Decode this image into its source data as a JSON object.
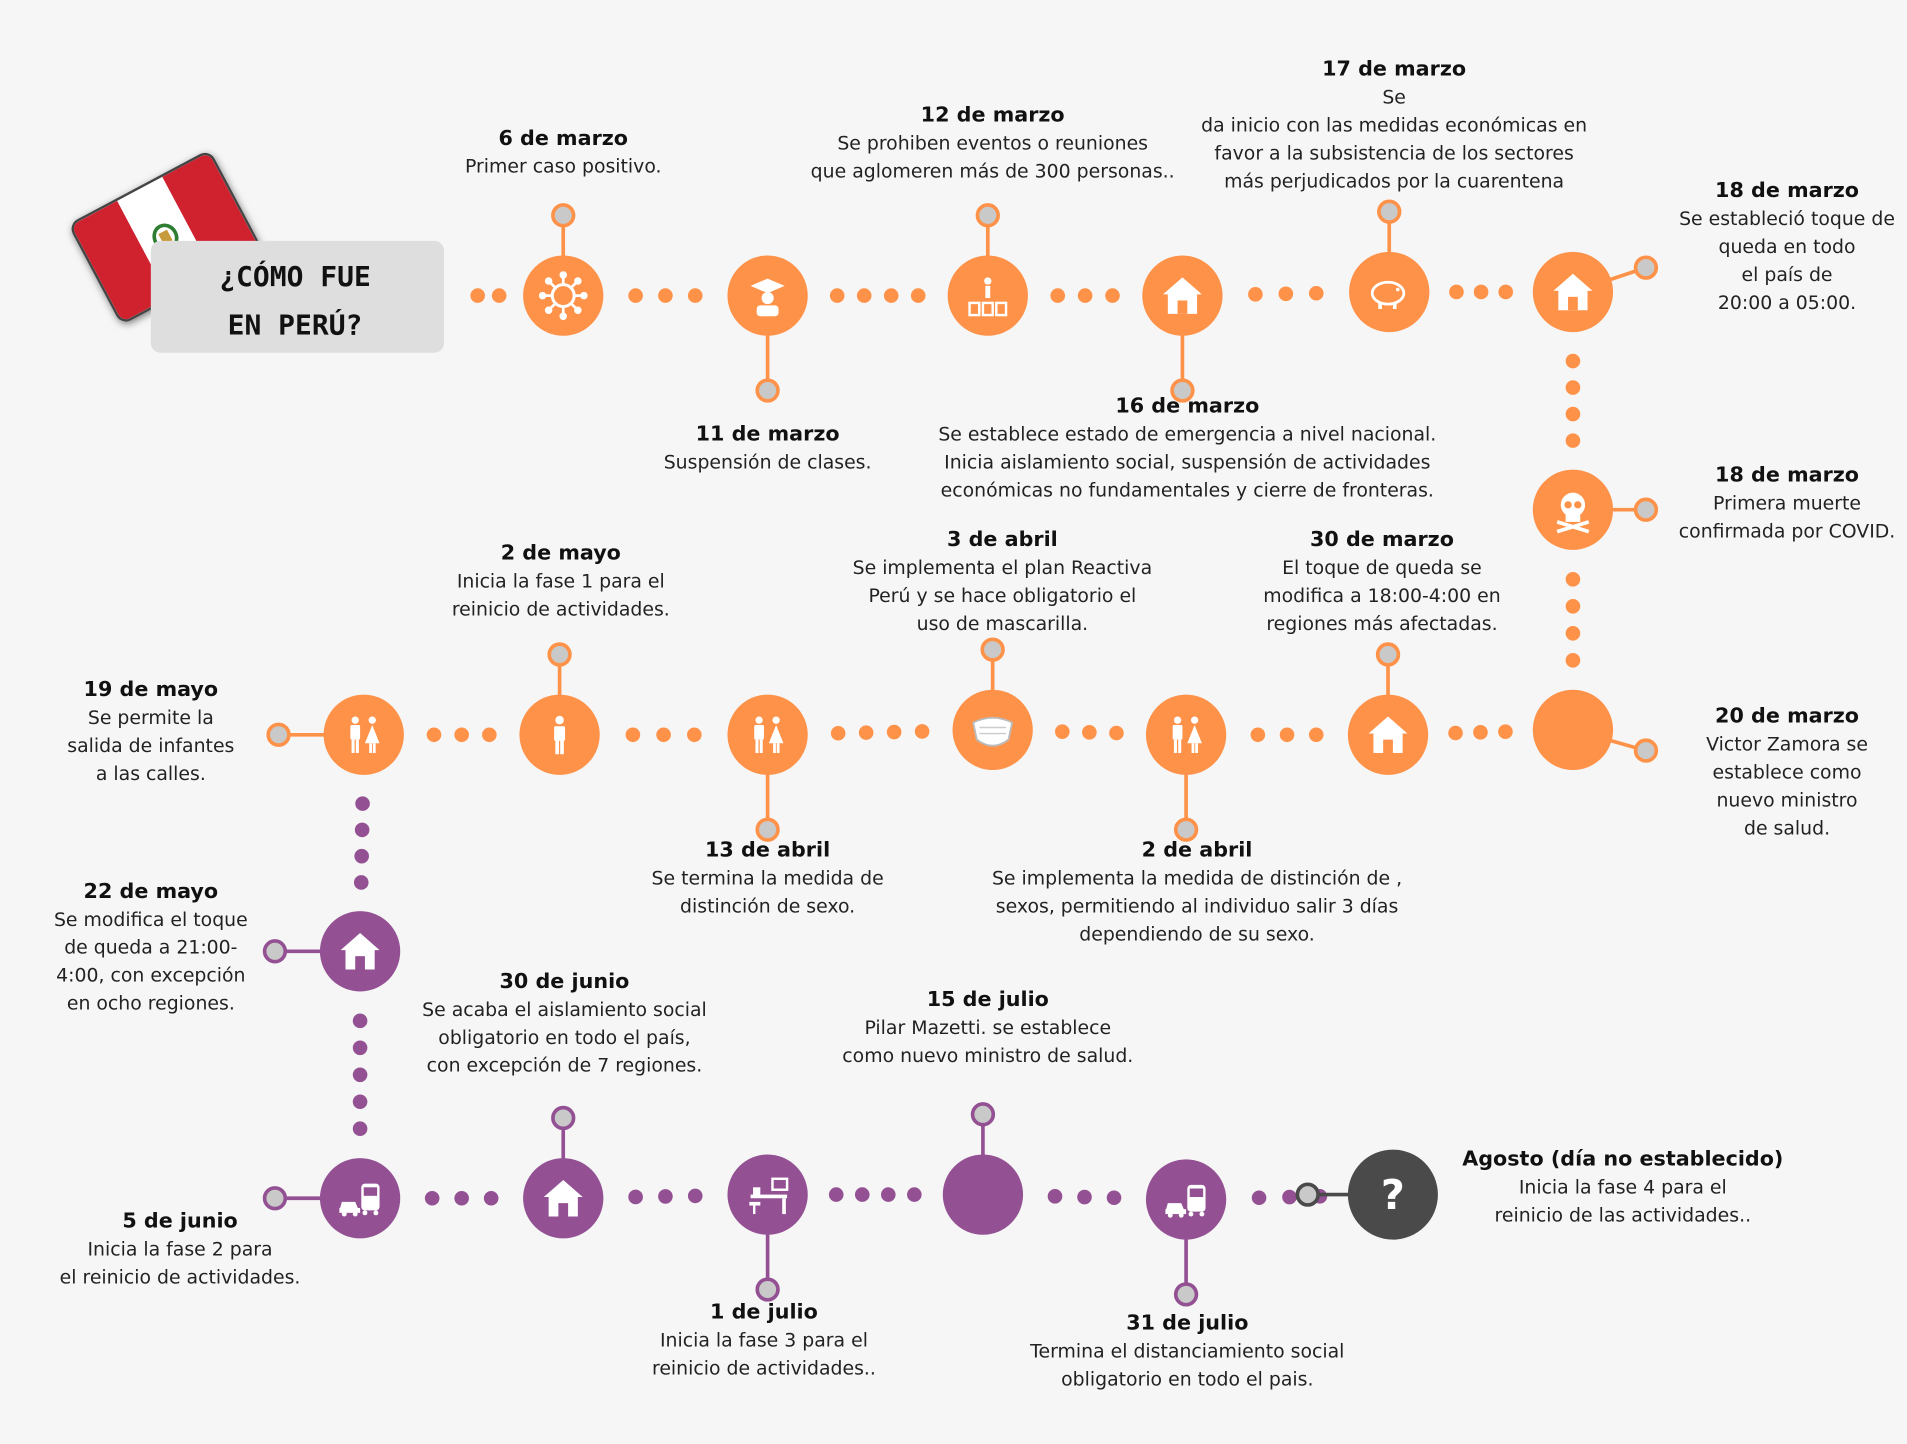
{
  "title": "¿CÓMO FUE\nEN PERÚ?",
  "colors": {
    "phase1": "#ff9249",
    "phase2": "#935193",
    "future": "#4a4a4a",
    "pin": "#c9c9c9",
    "flag_red": "#d0212f"
  },
  "events": [
    {
      "date": "6 de marzo",
      "text": "Primer caso positivo.",
      "icon": "virus-icon"
    },
    {
      "date": "11 de marzo",
      "text": "Suspensión de clases.",
      "icon": "graduate-icon"
    },
    {
      "date": "12 de marzo",
      "text": "Se prohiben eventos o reuniones\nque aglomeren más de 300 personas..",
      "icon": "speaker-crowd-icon"
    },
    {
      "date": "16 de marzo",
      "text": "Se establece estado de emergencia a nivel nacional.\nInicia aislamiento social, suspensión de  actividades\neconómicas no fundamentales y cierre de fronteras.",
      "icon": "house-icon"
    },
    {
      "date": "17 de marzo",
      "text": "Se\nda inicio con las medidas económicas en\nfavor a la subsistencia de los sectores\nmás perjudicados por la cuarentena",
      "icon": "piggy-bank-icon"
    },
    {
      "date": "18 de marzo",
      "text": "Se estableció toque de\nqueda en todo\nel país de\n20:00 a 05:00.",
      "icon": "house-icon"
    },
    {
      "date": "18 de marzo",
      "text": "Primera muerte\nconfirmada por COVID.",
      "icon": "skull-icon"
    },
    {
      "date": "20 de marzo",
      "text": "Victor Zamora se\nestablece como\nnuevo ministro\nde salud.",
      "icon": ""
    },
    {
      "date": "30 de marzo",
      "text": "El toque de queda se\nmodifica  a 18:00-4:00 en\nregiones más afectadas.",
      "icon": "house-icon"
    },
    {
      "date": "2 de abril",
      "text": "Se implementa la medida de distinción de ,\nsexos, permitiendo al individuo salir 3 días\ndependiendo de su sexo.",
      "icon": "man-woman-icon"
    },
    {
      "date": "3 de abril",
      "text": "Se implementa el plan Reactiva\nPerú y se hace obligatorio el\nuso de mascarilla.",
      "icon": "face-mask-icon"
    },
    {
      "date": "13 de abril",
      "text": "Se termina la medida de\ndistinción de sexo.",
      "icon": "man-woman-icon"
    },
    {
      "date": "2 de mayo",
      "text": "Inicia la fase 1 para el\nreinicio de actividades.",
      "icon": "person-icon"
    },
    {
      "date": "19 de mayo",
      "text": "Se permite la\nsalida de infantes\na las calles.",
      "icon": "man-woman-icon"
    },
    {
      "date": "22 de  mayo",
      "text": "Se modifica el toque\nde queda a 21:00-\n4:00, con excepción\nen ocho regiones.",
      "icon": "house-icon"
    },
    {
      "date": "5 de  junio",
      "text": "Inicia la fase 2 para\nel reinicio de actividades.",
      "icon": "car-bus-icon"
    },
    {
      "date": "30 de junio",
      "text": "Se acaba el aislamiento social\nobligatorio en todo el país,\ncon excepción de 7 regiones.",
      "icon": "house-icon"
    },
    {
      "date": "1 de julio",
      "text": "Inicia la fase 3 para el\nreinicio de actividades..",
      "icon": "office-desk-icon"
    },
    {
      "date": "15 de julio",
      "text": "Pilar Mazetti. se establece\ncomo nuevo ministro de salud.",
      "icon": ""
    },
    {
      "date": "31 de julio",
      "text": "Termina el distanciamiento social\nobligatorio en todo el pais.",
      "icon": "car-bus-icon"
    },
    {
      "date": "Agosto (día no establecido)",
      "text": "Inicia la fase 4 para el\nreinicio de las actividades..",
      "icon": "question-icon"
    }
  ]
}
